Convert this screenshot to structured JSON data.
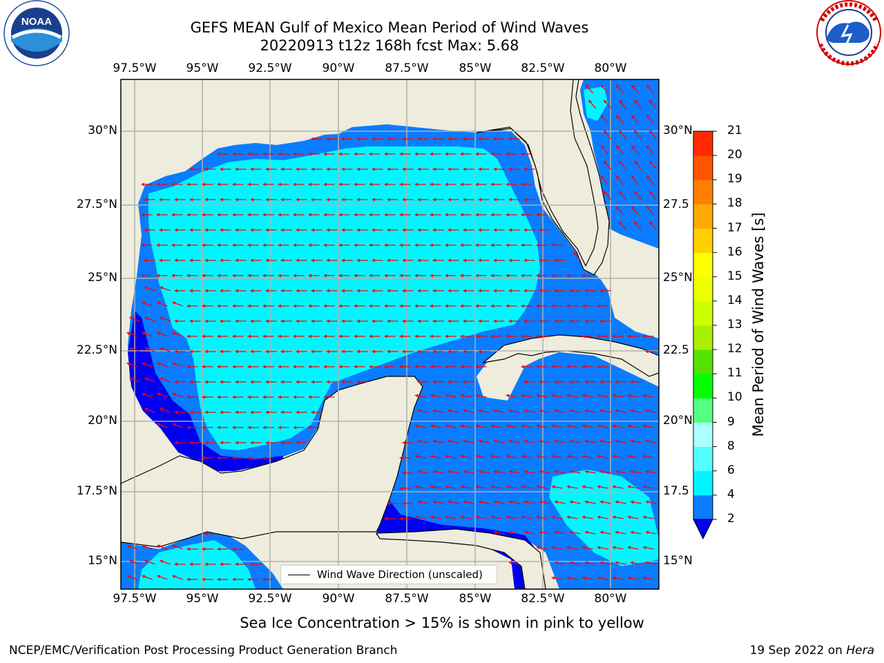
{
  "title": {
    "line1": "GEFS MEAN Gulf of Mexico Mean Period of Wind Waves",
    "line2": "20220913 t12z 168h fcst   Max: 5.68"
  },
  "logos": {
    "left": {
      "name": "noaa-logo",
      "text": "NOAA",
      "ring_text": "NATIONAL OCEANIC AND ATMOSPHERIC ADMINISTRATION · U.S. DEPARTMENT OF COMMERCE"
    },
    "right": {
      "name": "nws-logo",
      "ring_text": "NATIONAL WEATHER SERVICE"
    }
  },
  "map": {
    "lon_ticks": [
      "97.5°W",
      "95°W",
      "92.5°W",
      "90°W",
      "87.5°W",
      "85°W",
      "82.5°W",
      "80°W"
    ],
    "lat_ticks_left": [
      "30°N",
      "27.5°N",
      "25°N",
      "22.5°N",
      "20°N",
      "17.5°N",
      "15°N"
    ],
    "lat_ticks_right": [
      "30°N",
      "27.5",
      "25°N",
      "22.5",
      "20°N",
      "17.5",
      "15°N"
    ],
    "lon_range": [
      -98,
      -78.2
    ],
    "lat_range": [
      14,
      31.8
    ],
    "grid": true,
    "land_color": "#eeecdc",
    "water_colors": {
      "2-4": "#0a7cff",
      "4-6": "#00f6ff",
      "<2": "#0000f0"
    },
    "arrow_color": "#ff0000",
    "wind_wave_direction": "predominantly westward",
    "legend": {
      "label": "Wind Wave Direction (unscaled)"
    }
  },
  "colorbar": {
    "label": "Mean Period of Wind Waves [s]",
    "ticks": [
      "2",
      "4",
      "6",
      "8",
      "9",
      "10",
      "11",
      "12",
      "13",
      "14",
      "15",
      "16",
      "17",
      "18",
      "19",
      "20",
      "21"
    ],
    "colors": [
      "#0a7cff",
      "#00f6ff",
      "#55ffff",
      "#aaffff",
      "#55ff80",
      "#00ff00",
      "#55e000",
      "#aaee00",
      "#ccff00",
      "#eeff00",
      "#ffff00",
      "#ffd000",
      "#ffa800",
      "#ff8000",
      "#ff5500",
      "#ff2a00",
      "#ff0000"
    ],
    "extend_color": "#0000f0"
  },
  "note": "Sea Ice Concentration > 15% is shown in pink to yellow",
  "footer": {
    "left": "NCEP/EMC/Verification Post Processing Product Generation Branch",
    "right_date": "19 Sep 2022 on ",
    "right_host": "Hera"
  }
}
